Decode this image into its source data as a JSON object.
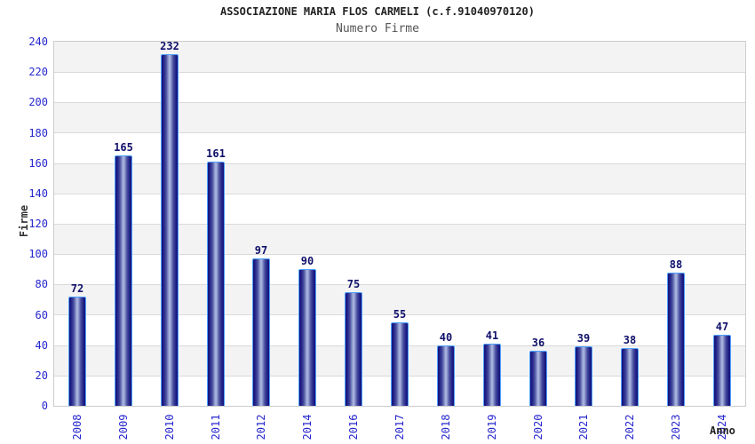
{
  "chart_data": {
    "type": "bar",
    "title": "ASSOCIAZIONE MARIA FLOS CARMELI (c.f.91040970120)",
    "subtitle": "Numero Firme",
    "xlabel": "Anno",
    "ylabel": "Firme",
    "categories": [
      "2008",
      "2009",
      "2010",
      "2011",
      "2012",
      "2014",
      "2016",
      "2017",
      "2018",
      "2019",
      "2020",
      "2021",
      "2022",
      "2023",
      "2024"
    ],
    "values": [
      72,
      165,
      232,
      161,
      97,
      90,
      75,
      55,
      40,
      41,
      36,
      39,
      38,
      88,
      47
    ],
    "ylim": [
      0,
      240
    ],
    "ytick_step": 20,
    "grid": true,
    "legend": false,
    "band_pattern": "alternating gray/white horizontal bands, gray at top band (220-240)",
    "colors": {
      "bar_edge": "#4da0ff",
      "bar_dark": "#14147a",
      "bar_highlight": "#a7b3de",
      "tick_label": "#2626cf",
      "value_label": "#10106a",
      "title": "#222222",
      "subtitle": "#555555",
      "band_gray": "#f3f3f3",
      "gridline": "#dadada",
      "plot_border": "#cccccc"
    }
  }
}
